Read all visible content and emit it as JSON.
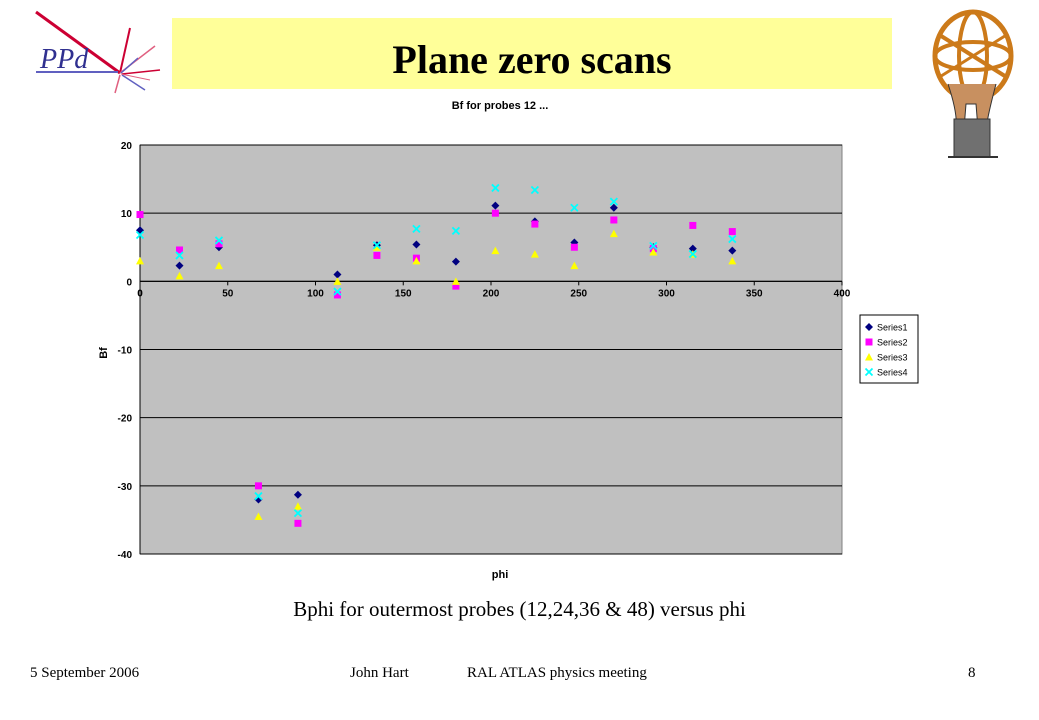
{
  "slide": {
    "title": "Plane zero scans",
    "logo_text": "PPd",
    "caption": "Bphi for outermost probes (12,24,36 & 48) versus phi",
    "footer_date": "5 September 2006",
    "footer_author": "John Hart",
    "footer_meeting": "RAL ATLAS physics meeting",
    "page_number": "8"
  },
  "chart_data": {
    "type": "scatter",
    "title": "Bf for probes 12 ...",
    "xlabel": "phi",
    "ylabel": "Bf",
    "xlim": [
      0,
      400
    ],
    "ylim": [
      -40,
      20
    ],
    "xticks": [
      0,
      50,
      100,
      150,
      200,
      250,
      300,
      350,
      400
    ],
    "yticks": [
      20,
      10,
      0,
      -10,
      -20,
      -30,
      -40
    ],
    "grid": "horizontal major gridlines",
    "plot_background": "#c0c0c0",
    "legend_position": "right",
    "series": [
      {
        "name": "Series1",
        "marker": "diamond",
        "color": "#000080",
        "points": [
          [
            0,
            7.5
          ],
          [
            22.5,
            2.3
          ],
          [
            45,
            5
          ],
          [
            67.5,
            -32
          ],
          [
            90,
            -31.3
          ],
          [
            112.5,
            1
          ],
          [
            135,
            5.3
          ],
          [
            157.5,
            5.4
          ],
          [
            180,
            2.9
          ],
          [
            202.5,
            11.1
          ],
          [
            225,
            8.8
          ],
          [
            247.5,
            5.7
          ],
          [
            270,
            10.8
          ],
          [
            292.5,
            5
          ],
          [
            315,
            4.8
          ],
          [
            337.5,
            4.5
          ]
        ]
      },
      {
        "name": "Series2",
        "marker": "square",
        "color": "#ff00ff",
        "points": [
          [
            0,
            9.8
          ],
          [
            22.5,
            4.6
          ],
          [
            45,
            5.5
          ],
          [
            67.5,
            -30
          ],
          [
            90,
            -35.5
          ],
          [
            112.5,
            -2
          ],
          [
            135,
            3.8
          ],
          [
            157.5,
            3.4
          ],
          [
            180,
            -0.7
          ],
          [
            202.5,
            10
          ],
          [
            225,
            8.4
          ],
          [
            247.5,
            5
          ],
          [
            270,
            9
          ],
          [
            292.5,
            4.8
          ],
          [
            315,
            8.2
          ],
          [
            337.5,
            7.3
          ]
        ]
      },
      {
        "name": "Series3",
        "marker": "triangle",
        "color": "#ffff00",
        "points": [
          [
            0,
            3
          ],
          [
            22.5,
            0.8
          ],
          [
            45,
            2.3
          ],
          [
            67.5,
            -34.5
          ],
          [
            90,
            -33
          ],
          [
            112.5,
            0
          ],
          [
            135,
            5
          ],
          [
            157.5,
            3
          ],
          [
            180,
            0
          ],
          [
            202.5,
            4.5
          ],
          [
            225,
            4
          ],
          [
            247.5,
            2.3
          ],
          [
            270,
            7
          ],
          [
            292.5,
            4.3
          ],
          [
            315,
            4
          ],
          [
            337.5,
            3
          ]
        ]
      },
      {
        "name": "Series4",
        "marker": "x",
        "color": "#00ffff",
        "points": [
          [
            0,
            6.8
          ],
          [
            22.5,
            3.8
          ],
          [
            45,
            6
          ],
          [
            67.5,
            -31.5
          ],
          [
            90,
            -34
          ],
          [
            112.5,
            -1.5
          ],
          [
            135,
            5.3
          ],
          [
            157.5,
            7.7
          ],
          [
            180,
            7.4
          ],
          [
            202.5,
            13.7
          ],
          [
            225,
            13.4
          ],
          [
            247.5,
            10.8
          ],
          [
            270,
            11.7
          ],
          [
            292.5,
            5.2
          ],
          [
            315,
            4
          ],
          [
            337.5,
            6.2
          ]
        ]
      }
    ]
  }
}
